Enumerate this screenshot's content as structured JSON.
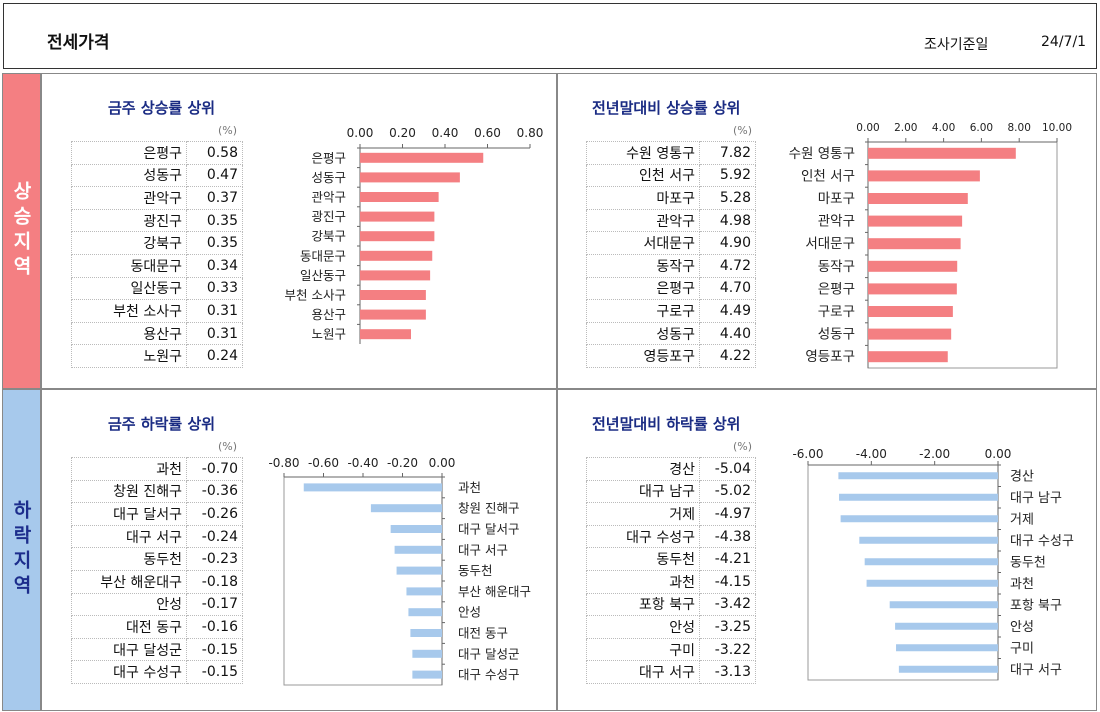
{
  "header": {
    "title": "전세가격",
    "date_label": "조사기준일",
    "date_value": "24/7/1"
  },
  "bands": {
    "up": "상승지역",
    "down": "하락지역"
  },
  "unit": "(%)",
  "colors": {
    "up": "#f47f82",
    "down": "#a7c9ec",
    "title": "#1a2b83"
  },
  "chart_data": [
    {
      "type": "bar",
      "title": "금주 상승률 상위",
      "categories": [
        "은평구",
        "성동구",
        "관악구",
        "광진구",
        "강북구",
        "동대문구",
        "일산동구",
        "부천 소사구",
        "용산구",
        "노원구"
      ],
      "values": [
        0.58,
        0.47,
        0.37,
        0.35,
        0.35,
        0.34,
        0.33,
        0.31,
        0.31,
        0.24
      ],
      "labels": [
        "0.58",
        "0.47",
        "0.37",
        "0.35",
        "0.35",
        "0.34",
        "0.33",
        "0.31",
        "0.31",
        "0.24"
      ],
      "xlim": [
        0,
        0.8
      ],
      "ticks": [
        "0.00",
        "0.20",
        "0.40",
        "0.60",
        "0.80"
      ]
    },
    {
      "type": "bar",
      "title": "전년말대비 상승률 상위",
      "categories": [
        "수원 영통구",
        "인천 서구",
        "마포구",
        "관악구",
        "서대문구",
        "동작구",
        "은평구",
        "구로구",
        "성동구",
        "영등포구"
      ],
      "values": [
        7.82,
        5.92,
        5.28,
        4.98,
        4.9,
        4.72,
        4.7,
        4.49,
        4.4,
        4.22
      ],
      "labels": [
        "7.82",
        "5.92",
        "5.28",
        "4.98",
        "4.90",
        "4.72",
        "4.70",
        "4.49",
        "4.40",
        "4.22"
      ],
      "xlim": [
        0,
        10
      ],
      "ticks": [
        "0.00",
        "2.00",
        "4.00",
        "6.00",
        "8.00",
        "10.00"
      ]
    },
    {
      "type": "bar",
      "title": "금주 하락률 상위",
      "categories": [
        "과천",
        "창원 진해구",
        "대구 달서구",
        "대구 서구",
        "동두천",
        "부산 해운대구",
        "안성",
        "대전 동구",
        "대구 달성군",
        "대구 수성구"
      ],
      "values": [
        -0.7,
        -0.36,
        -0.26,
        -0.24,
        -0.23,
        -0.18,
        -0.17,
        -0.16,
        -0.15,
        -0.15
      ],
      "labels": [
        "-0.70",
        "-0.36",
        "-0.26",
        "-0.24",
        "-0.23",
        "-0.18",
        "-0.17",
        "-0.16",
        "-0.15",
        "-0.15"
      ],
      "xlim": [
        -0.8,
        0
      ],
      "ticks": [
        "-0.80",
        "-0.60",
        "-0.40",
        "-0.20",
        "0.00"
      ]
    },
    {
      "type": "bar",
      "title": "전년말대비 하락률 상위",
      "categories": [
        "경산",
        "대구 남구",
        "거제",
        "대구 수성구",
        "동두천",
        "과천",
        "포항 북구",
        "안성",
        "구미",
        "대구 서구"
      ],
      "values": [
        -5.04,
        -5.02,
        -4.97,
        -4.38,
        -4.21,
        -4.15,
        -3.42,
        -3.25,
        -3.22,
        -3.13
      ],
      "labels": [
        "-5.04",
        "-5.02",
        "-4.97",
        "-4.38",
        "-4.21",
        "-4.15",
        "-3.42",
        "-3.25",
        "-3.22",
        "-3.13"
      ],
      "xlim": [
        -6,
        0
      ],
      "ticks": [
        "-6.00",
        "-4.00",
        "-2.00",
        "0.00"
      ]
    }
  ]
}
